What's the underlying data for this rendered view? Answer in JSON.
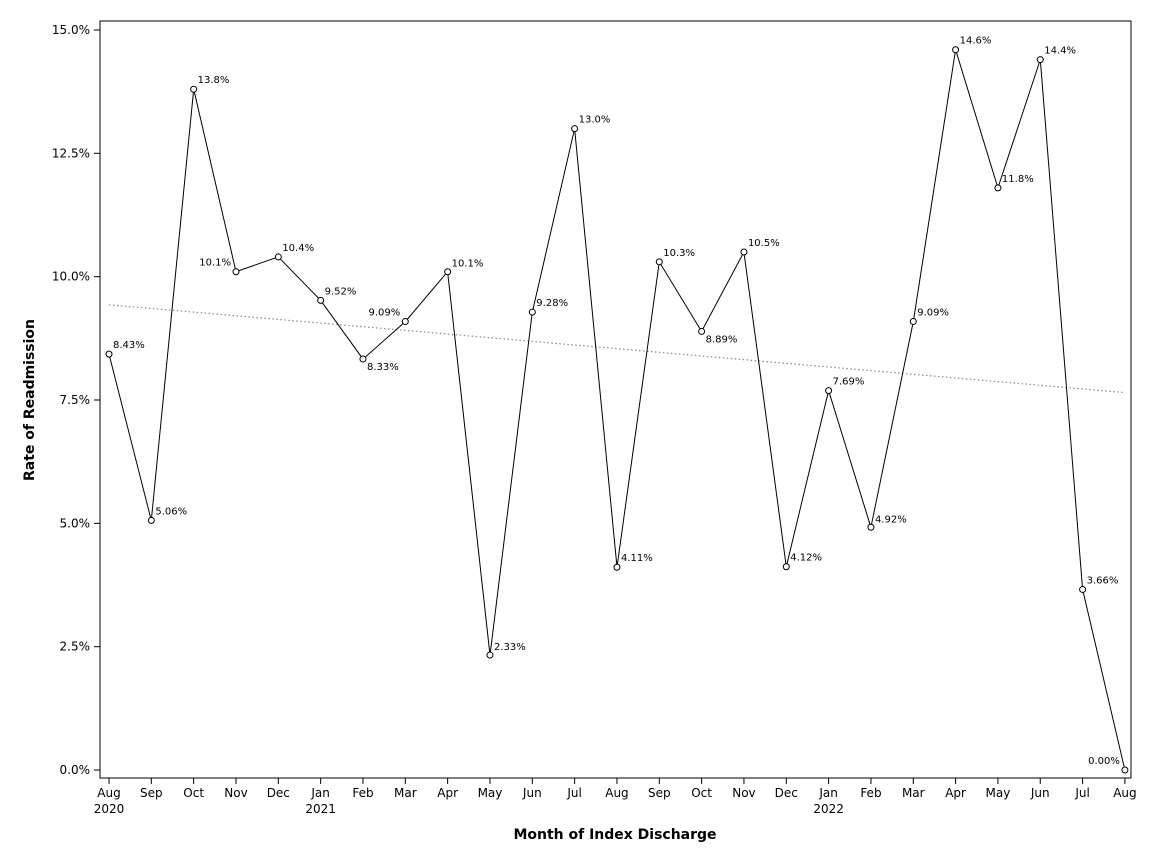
{
  "chart_data": {
    "type": "line",
    "xlabel": "Month of Index Discharge",
    "ylabel": "Rate of Readmission",
    "ylim": [
      0,
      15
    ],
    "y_ticks": [
      "0.0%",
      "2.5%",
      "5.0%",
      "7.5%",
      "10.0%",
      "12.5%",
      "15.0%"
    ],
    "y_tick_values": [
      0,
      2.5,
      5,
      7.5,
      10,
      12.5,
      15
    ],
    "categories": [
      "Aug",
      "Sep",
      "Oct",
      "Nov",
      "Dec",
      "Jan",
      "Feb",
      "Mar",
      "Apr",
      "May",
      "Jun",
      "Jul",
      "Aug",
      "Sep",
      "Oct",
      "Nov",
      "Dec",
      "Jan",
      "Feb",
      "Mar",
      "Apr",
      "May",
      "Jun",
      "Jul",
      "Aug"
    ],
    "year_labels": [
      "2020",
      "",
      "",
      "",
      "",
      "2021",
      "",
      "",
      "",
      "",
      "",
      "",
      "",
      "",
      "",
      "",
      "",
      "2022",
      "",
      "",
      "",
      "",
      "",
      "",
      ""
    ],
    "series": [
      {
        "values": [
          8.43,
          5.06,
          13.8,
          10.1,
          10.4,
          9.52,
          8.33,
          9.09,
          10.1,
          2.33,
          9.28,
          13.0,
          4.11,
          10.3,
          8.89,
          10.5,
          4.12,
          7.69,
          4.92,
          9.09,
          14.6,
          11.8,
          14.4,
          3.66,
          0.0
        ],
        "labels": [
          "8.43%",
          "5.06%",
          "13.8%",
          "10.1%",
          "10.4%",
          "9.52%",
          "8.33%",
          "9.09%",
          "10.1%",
          "2.33%",
          "9.28%",
          "13.0%",
          "4.11%",
          "10.3%",
          "8.89%",
          "10.5%",
          "4.12%",
          "7.69%",
          "4.92%",
          "9.09%",
          "14.6%",
          "11.8%",
          "14.4%",
          "3.66%",
          "0.00%"
        ],
        "marker": "open-circle",
        "color": "#000000"
      }
    ],
    "trend_line": {
      "start": 9.43,
      "end": 7.65,
      "style": "dotted",
      "color": "#888888"
    },
    "grid": false,
    "legend": "none"
  }
}
